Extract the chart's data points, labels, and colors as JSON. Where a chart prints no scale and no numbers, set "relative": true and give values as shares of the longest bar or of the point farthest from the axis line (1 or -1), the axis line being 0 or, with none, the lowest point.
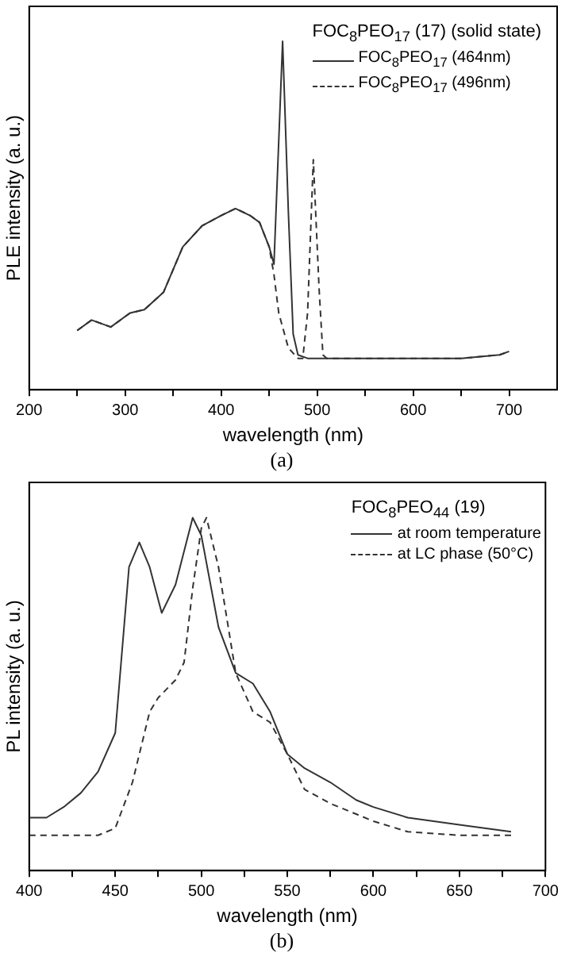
{
  "chart_data": [
    {
      "type": "line",
      "relative": true,
      "xlabel": "wavelength (nm)",
      "ylabel": "PLE intensity (a. u.)",
      "legend_title": "FOC$_{8}$PEO$_{17}$ (17) (solid state)",
      "legend": "top right",
      "grid": false,
      "marker": "none",
      "xlim": [
        200,
        750
      ],
      "xticks": [
        200,
        {
          "value": 250,
          "label": null
        },
        300,
        {
          "value": 350,
          "label": null
        },
        400,
        {
          "value": 450,
          "label": null
        },
        500,
        {
          "value": 550,
          "label": null
        },
        600,
        {
          "value": 650,
          "label": null
        },
        700
      ],
      "annotations": [
        "(a)"
      ],
      "series": [
        {
          "name": "FOC$_{8}$PEO$_{17}$ (464nm)",
          "color": "#333333",
          "line_style": "solid",
          "x": [
            250,
            265,
            285,
            305,
            320,
            340,
            360,
            380,
            400,
            415,
            430,
            440,
            450,
            455,
            464,
            470,
            475,
            480,
            490,
            500,
            550,
            650,
            690,
            700
          ],
          "values": [
            0.17,
            0.2,
            0.18,
            0.22,
            0.23,
            0.28,
            0.41,
            0.47,
            0.5,
            0.52,
            0.5,
            0.48,
            0.41,
            0.36,
            1.0,
            0.51,
            0.16,
            0.1,
            0.09,
            0.09,
            0.09,
            0.09,
            0.1,
            0.11
          ]
        },
        {
          "name": "FOC$_{8}$PEO$_{17}$ (496nm)",
          "color": "#333333",
          "line_style": "dashed",
          "x": [
            250,
            265,
            285,
            305,
            320,
            340,
            360,
            380,
            400,
            415,
            430,
            440,
            450,
            455,
            460,
            470,
            480,
            485,
            490,
            496,
            502,
            506,
            510,
            550,
            650,
            690,
            700
          ],
          "values": [
            0.17,
            0.2,
            0.18,
            0.22,
            0.23,
            0.28,
            0.41,
            0.47,
            0.5,
            0.52,
            0.5,
            0.48,
            0.41,
            0.33,
            0.22,
            0.12,
            0.09,
            0.09,
            0.22,
            0.66,
            0.29,
            0.1,
            0.09,
            0.09,
            0.09,
            0.1,
            0.11
          ]
        }
      ]
    },
    {
      "type": "line",
      "relative": true,
      "xlabel": "wavelength (nm)",
      "ylabel": "PL intensity (a. u.)",
      "legend_title": "FOC$_{8}$PEO$_{44}$ (19)",
      "legend": "top right",
      "grid": false,
      "marker": "none",
      "xlim": [
        400,
        700
      ],
      "xticks": [
        400,
        {
          "value": 425,
          "label": null
        },
        450,
        {
          "value": 475,
          "label": null
        },
        500,
        {
          "value": 525,
          "label": null
        },
        550,
        {
          "value": 575,
          "label": null
        },
        600,
        {
          "value": 625,
          "label": null
        },
        650,
        {
          "value": 675,
          "label": null
        },
        700
      ],
      "annotations": [
        "(b)"
      ],
      "series": [
        {
          "name": "at room temperature",
          "color": "#333333",
          "line_style": "solid",
          "x": [
            400,
            410,
            420,
            430,
            440,
            450,
            458,
            464,
            470,
            477,
            485,
            495,
            500,
            510,
            520,
            530,
            540,
            550,
            560,
            575,
            590,
            600,
            620,
            650,
            680
          ],
          "values": [
            0.15,
            0.15,
            0.18,
            0.22,
            0.28,
            0.39,
            0.86,
            0.93,
            0.86,
            0.73,
            0.81,
            1.0,
            0.95,
            0.69,
            0.56,
            0.53,
            0.45,
            0.33,
            0.29,
            0.25,
            0.2,
            0.18,
            0.15,
            0.13,
            0.11
          ]
        },
        {
          "name": "at LC phase (50°C)",
          "color": "#333333",
          "line_style": "dashed",
          "x": [
            400,
            440,
            450,
            460,
            470,
            475,
            485,
            490,
            495,
            500,
            503,
            510,
            520,
            530,
            540,
            550,
            560,
            575,
            590,
            600,
            620,
            650,
            680
          ],
          "values": [
            0.1,
            0.1,
            0.12,
            0.25,
            0.45,
            0.49,
            0.54,
            0.59,
            0.8,
            0.97,
            1.0,
            0.86,
            0.56,
            0.45,
            0.42,
            0.33,
            0.23,
            0.19,
            0.16,
            0.14,
            0.11,
            0.1,
            0.1
          ]
        }
      ]
    }
  ]
}
